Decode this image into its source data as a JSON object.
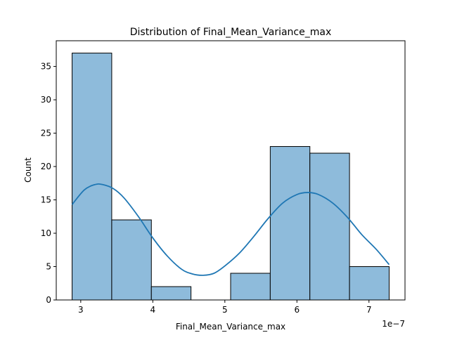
{
  "chart_data": {
    "type": "bar",
    "title": "Distribution of Final_Mean_Variance_max",
    "xlabel": "Final_Mean_Variance_max",
    "ylabel": "Count",
    "x_offset_label": "1e−7",
    "bins": [
      {
        "start": 2.88,
        "end": 3.43,
        "count": 37
      },
      {
        "start": 3.43,
        "end": 3.98,
        "count": 12
      },
      {
        "start": 3.98,
        "end": 4.53,
        "count": 2
      },
      {
        "start": 4.53,
        "end": 5.08,
        "count": 0
      },
      {
        "start": 5.08,
        "end": 5.63,
        "count": 4
      },
      {
        "start": 5.63,
        "end": 6.18,
        "count": 23
      },
      {
        "start": 6.18,
        "end": 6.73,
        "count": 22
      },
      {
        "start": 6.73,
        "end": 7.28,
        "count": 5
      }
    ],
    "kde": {
      "x": [
        2.88,
        3.05,
        3.2,
        3.3,
        3.45,
        3.6,
        3.8,
        4.0,
        4.2,
        4.4,
        4.55,
        4.7,
        4.85,
        5.0,
        5.2,
        5.4,
        5.6,
        5.8,
        6.0,
        6.15,
        6.3,
        6.5,
        6.7,
        6.9,
        7.1,
        7.28
      ],
      "y": [
        14.3,
        16.5,
        17.3,
        17.3,
        16.7,
        15.3,
        12.5,
        9.3,
        6.6,
        4.6,
        3.9,
        3.7,
        4.0,
        5.1,
        7.0,
        9.5,
        12.2,
        14.5,
        15.8,
        16.1,
        15.8,
        14.5,
        12.4,
        9.8,
        7.6,
        5.3
      ]
    },
    "xlim": [
      2.66,
      7.5
    ],
    "ylim": [
      0,
      38.85
    ],
    "xticks": [
      3,
      4,
      5,
      6,
      7
    ],
    "yticks": [
      0,
      5,
      10,
      15,
      20,
      25,
      30,
      35
    ],
    "colors": {
      "bar_fill": "#8ebbdb",
      "bar_edge": "#000000",
      "kde_line": "#1f77b4"
    },
    "grid": false,
    "legend": "none"
  }
}
